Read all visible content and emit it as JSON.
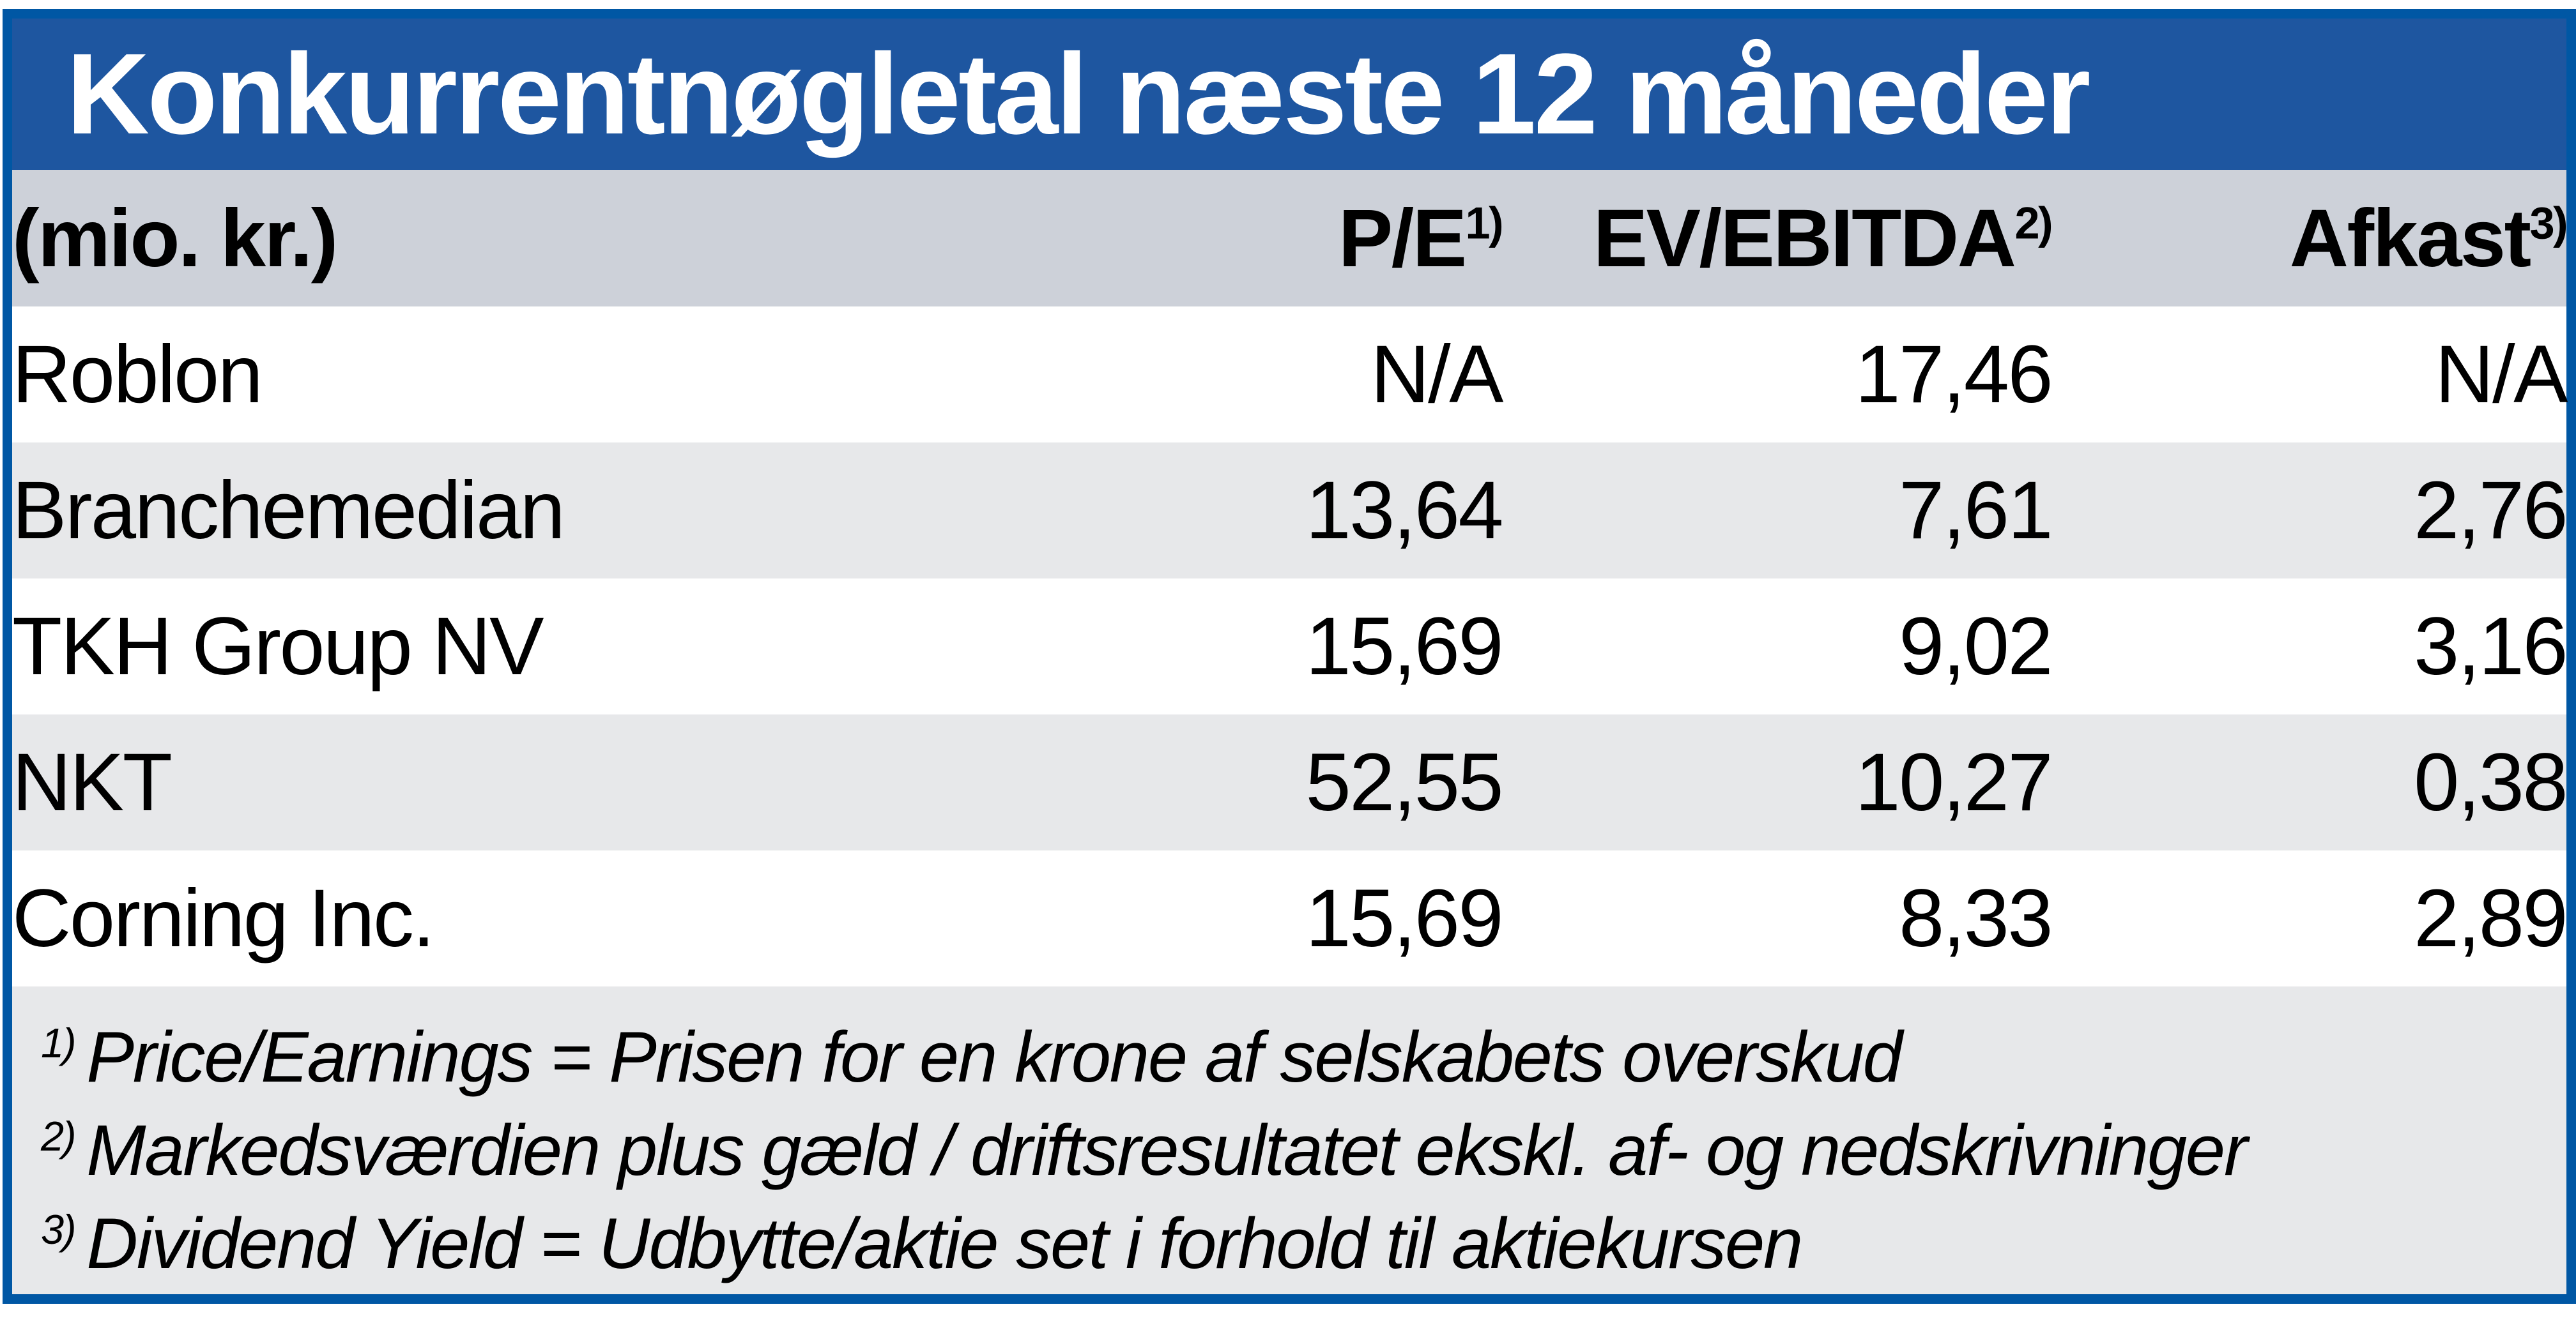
{
  "title": "Konkurrentnøgletal næste 12 måneder",
  "table": {
    "unit_label": "(mio. kr.)",
    "columns": [
      {
        "label": "P/E",
        "sup": "1)"
      },
      {
        "label": "EV/EBITDA",
        "sup": "2)"
      },
      {
        "label": "Afkast",
        "sup": "3)"
      }
    ],
    "rows": [
      {
        "name": "Roblon",
        "pe": "N/A",
        "ev_ebitda": "17,46",
        "afkast": "N/A"
      },
      {
        "name": "Branchemedian",
        "pe": "13,64",
        "ev_ebitda": "7,61",
        "afkast": "2,76"
      },
      {
        "name": "TKH Group NV",
        "pe": "15,69",
        "ev_ebitda": "9,02",
        "afkast": "3,16"
      },
      {
        "name": "NKT",
        "pe": "52,55",
        "ev_ebitda": "10,27",
        "afkast": "0,38"
      },
      {
        "name": "Corning Inc.",
        "pe": "15,69",
        "ev_ebitda": "8,33",
        "afkast": "2,89"
      }
    ],
    "footnotes": [
      {
        "sup": "1)",
        "text": "Price/Earnings = Prisen for en krone af selskabets overskud"
      },
      {
        "sup": "2)",
        "text": "Markedsværdien plus gæld / driftsresultatet ekskl. af- og nedskrivninger"
      },
      {
        "sup": "3)",
        "text": "Dividend Yield = Udbytte/aktie set i forhold til aktiekursen"
      }
    ]
  },
  "colors": {
    "frame_blue": "#0057A4",
    "title_band_blue": "#1E56A0",
    "header_row_gray": "#CDD1D9",
    "alt_row_gray": "#E7E8EA",
    "title_text": "#FFFFFF",
    "body_text": "#000000"
  },
  "chart_data": {
    "type": "table",
    "title": "Konkurrentnøgletal næste 12 måneder",
    "unit": "(mio. kr.)",
    "columns": [
      "P/E 1)",
      "EV/EBITDA 2)",
      "Afkast 3)"
    ],
    "rows": [
      {
        "name": "Roblon",
        "values": [
          null,
          17.46,
          null
        ]
      },
      {
        "name": "Branchemedian",
        "values": [
          13.64,
          7.61,
          2.76
        ]
      },
      {
        "name": "TKH Group NV",
        "values": [
          15.69,
          9.02,
          3.16
        ]
      },
      {
        "name": "NKT",
        "values": [
          52.55,
          10.27,
          0.38
        ]
      },
      {
        "name": "Corning Inc.",
        "values": [
          15.69,
          8.33,
          2.89
        ]
      }
    ],
    "na_display": "N/A",
    "decimal_separator": ","
  }
}
